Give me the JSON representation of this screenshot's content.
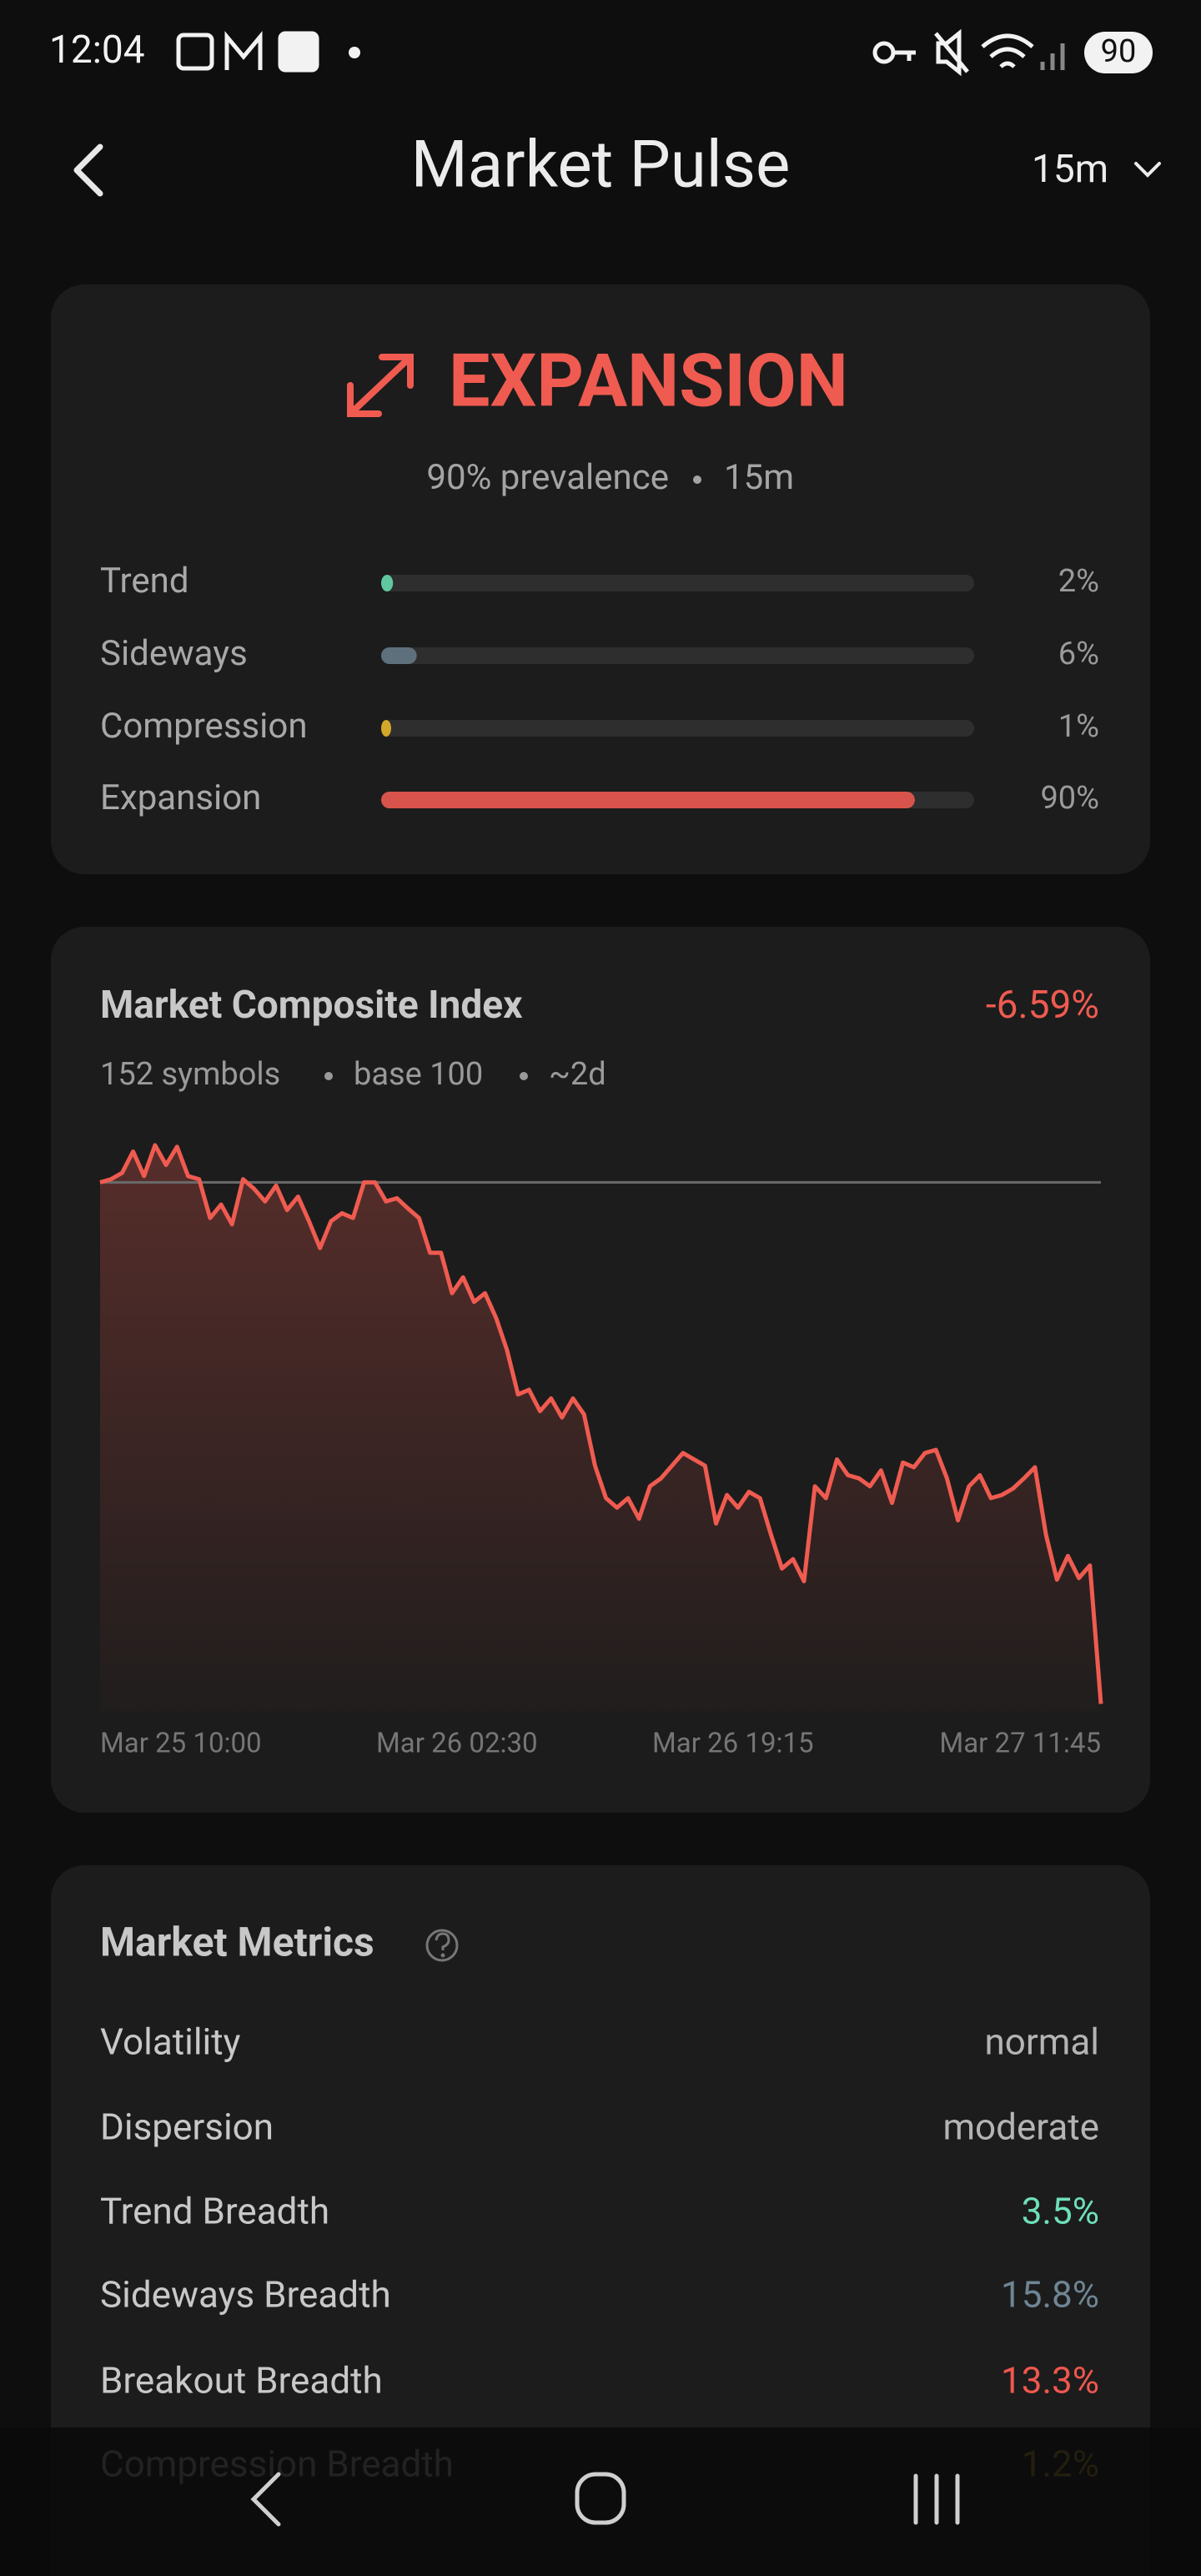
{
  "status_bar": {
    "time": "12:04",
    "battery": "90"
  },
  "header": {
    "title": "Market Pulse",
    "timeframe": "15m"
  },
  "regime": {
    "name": "EXPANSION",
    "prevalence": "90% prevalence",
    "timeframe": "15m",
    "xlim": [
      0,
      100
    ],
    "bars": [
      {
        "label": "Trend",
        "value": 2,
        "value_label": "2%",
        "color": "#5fc8a0"
      },
      {
        "label": "Sideways",
        "value": 6,
        "value_label": "6%",
        "color": "#5e707c"
      },
      {
        "label": "Compression",
        "value": 1,
        "value_label": "1%",
        "color": "#d4a82a"
      },
      {
        "label": "Expansion",
        "value": 90,
        "value_label": "90%",
        "color": "#d9534d"
      }
    ]
  },
  "chart_data": {
    "type": "line",
    "title": "Market Composite Index",
    "change": "-6.59%",
    "subtitle": [
      "152 symbols",
      "base 100",
      "~2d"
    ],
    "baseline": 100,
    "color": "#ef5b50",
    "ylim": [
      93.3,
      100.7
    ],
    "xtick_labels": [
      "Mar 25 10:00",
      "Mar 26 02:30",
      "Mar 26 19:15",
      "Mar 27 11:45"
    ],
    "values": [
      100.0,
      100.04,
      100.12,
      100.39,
      100.08,
      100.47,
      100.22,
      100.45,
      100.08,
      100.04,
      99.55,
      99.72,
      99.47,
      100.04,
      99.92,
      99.76,
      99.96,
      99.65,
      99.82,
      99.51,
      99.17,
      99.51,
      99.61,
      99.55,
      100.0,
      100.0,
      99.76,
      99.8,
      99.67,
      99.55,
      99.11,
      99.11,
      98.6,
      98.8,
      98.49,
      98.6,
      98.29,
      97.88,
      97.32,
      97.38,
      97.11,
      97.27,
      97.03,
      97.27,
      97.07,
      96.42,
      96.01,
      95.89,
      96.01,
      95.75,
      96.16,
      96.26,
      96.42,
      96.58,
      96.5,
      96.42,
      95.69,
      96.05,
      95.89,
      96.09,
      96.01,
      95.55,
      95.12,
      95.24,
      94.96,
      96.16,
      96.01,
      96.5,
      96.3,
      96.26,
      96.16,
      96.36,
      95.95,
      96.46,
      96.4,
      96.58,
      96.62,
      96.26,
      95.73,
      96.16,
      96.3,
      96.01,
      96.05,
      96.13,
      96.26,
      96.4,
      95.55,
      94.98,
      95.28,
      95.0,
      95.16,
      93.41
    ]
  },
  "metrics": {
    "title": "Market Metrics",
    "rows": [
      {
        "label": "Volatility",
        "value": "normal",
        "color": "#b4b4b4"
      },
      {
        "label": "Dispersion",
        "value": "moderate",
        "color": "#b4b4b4"
      },
      {
        "label": "Trend Breadth",
        "value": "3.5%",
        "color": "#6ee0b8"
      },
      {
        "label": "Sideways Breadth",
        "value": "15.8%",
        "color": "#6e8593"
      },
      {
        "label": "Breakout Breadth",
        "value": "13.3%",
        "color": "#f0574e"
      },
      {
        "label": "Compression Breadth",
        "value": "1.2%",
        "color": "#d4a82a"
      }
    ]
  }
}
